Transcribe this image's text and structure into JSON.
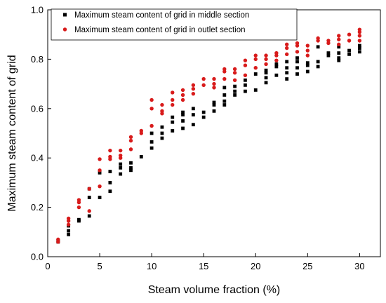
{
  "chart_data": {
    "type": "scatter",
    "xlabel": "Steam volume fraction (%)",
    "ylabel": "Maximum steam content of grid",
    "xlim": [
      0,
      32
    ],
    "ylim": [
      0,
      1.0
    ],
    "x_ticks": [
      0,
      5,
      10,
      15,
      20,
      25,
      30
    ],
    "y_ticks": [
      0.0,
      0.2,
      0.4,
      0.6,
      0.8,
      1.0
    ],
    "x_tick_labels": [
      "0",
      "5",
      "10",
      "15",
      "20",
      "25",
      "30"
    ],
    "y_tick_labels": [
      "0.0",
      "0.2",
      "0.4",
      "0.6",
      "0.8",
      "1.0"
    ],
    "legend_position": "top-left",
    "grid": false,
    "series": [
      {
        "name": "Maximum steam content of grid in middle section",
        "marker": "square",
        "color": "#000000",
        "points": [
          [
            1,
            0.065
          ],
          [
            1,
            0.06
          ],
          [
            2,
            0.09
          ],
          [
            2,
            0.105
          ],
          [
            2,
            0.125
          ],
          [
            3,
            0.15
          ],
          [
            3,
            0.145
          ],
          [
            4,
            0.165
          ],
          [
            4,
            0.24
          ],
          [
            4,
            0.275
          ],
          [
            5,
            0.24
          ],
          [
            5,
            0.34
          ],
          [
            6,
            0.265
          ],
          [
            6,
            0.3
          ],
          [
            6,
            0.345
          ],
          [
            7,
            0.335
          ],
          [
            7,
            0.36
          ],
          [
            7,
            0.375
          ],
          [
            8,
            0.35
          ],
          [
            8,
            0.36
          ],
          [
            8,
            0.38
          ],
          [
            9,
            0.405
          ],
          [
            10,
            0.44
          ],
          [
            10,
            0.465
          ],
          [
            10,
            0.5
          ],
          [
            11,
            0.48
          ],
          [
            11,
            0.5
          ],
          [
            11,
            0.525
          ],
          [
            12,
            0.51
          ],
          [
            12,
            0.545
          ],
          [
            12,
            0.565
          ],
          [
            13,
            0.52
          ],
          [
            13,
            0.55
          ],
          [
            13,
            0.575
          ],
          [
            13,
            0.585
          ],
          [
            14,
            0.535
          ],
          [
            14,
            0.575
          ],
          [
            14,
            0.6
          ],
          [
            15,
            0.565
          ],
          [
            15,
            0.585
          ],
          [
            16,
            0.59
          ],
          [
            16,
            0.615
          ],
          [
            16,
            0.625
          ],
          [
            17,
            0.615
          ],
          [
            17,
            0.63
          ],
          [
            17,
            0.655
          ],
          [
            17,
            0.685
          ],
          [
            18,
            0.655
          ],
          [
            18,
            0.67
          ],
          [
            18,
            0.69
          ],
          [
            19,
            0.67
          ],
          [
            19,
            0.695
          ],
          [
            19,
            0.715
          ],
          [
            20,
            0.675
          ],
          [
            20,
            0.74
          ],
          [
            21,
            0.705
          ],
          [
            21,
            0.725
          ],
          [
            21,
            0.745
          ],
          [
            21,
            0.755
          ],
          [
            22,
            0.735
          ],
          [
            22,
            0.77
          ],
          [
            22,
            0.78
          ],
          [
            23,
            0.72
          ],
          [
            23,
            0.745
          ],
          [
            23,
            0.765
          ],
          [
            23,
            0.79
          ],
          [
            24,
            0.74
          ],
          [
            24,
            0.765
          ],
          [
            24,
            0.79
          ],
          [
            24,
            0.805
          ],
          [
            25,
            0.75
          ],
          [
            25,
            0.775
          ],
          [
            25,
            0.785
          ],
          [
            26,
            0.77
          ],
          [
            26,
            0.79
          ],
          [
            26,
            0.85
          ],
          [
            27,
            0.815
          ],
          [
            27,
            0.825
          ],
          [
            28,
            0.795
          ],
          [
            28,
            0.805
          ],
          [
            28,
            0.825
          ],
          [
            28,
            0.85
          ],
          [
            29,
            0.82
          ],
          [
            29,
            0.835
          ],
          [
            30,
            0.83
          ],
          [
            30,
            0.845
          ],
          [
            30,
            0.855
          ]
        ]
      },
      {
        "name": "Maximum steam content of grid in outlet section",
        "marker": "circle",
        "color": "#d81b1b",
        "points": [
          [
            1,
            0.07
          ],
          [
            1,
            0.06
          ],
          [
            2,
            0.13
          ],
          [
            2,
            0.145
          ],
          [
            2,
            0.155
          ],
          [
            3,
            0.2
          ],
          [
            3,
            0.22
          ],
          [
            3,
            0.23
          ],
          [
            4,
            0.185
          ],
          [
            4,
            0.275
          ],
          [
            5,
            0.285
          ],
          [
            5,
            0.35
          ],
          [
            5,
            0.395
          ],
          [
            6,
            0.395
          ],
          [
            6,
            0.405
          ],
          [
            6,
            0.43
          ],
          [
            7,
            0.4
          ],
          [
            7,
            0.41
          ],
          [
            7,
            0.43
          ],
          [
            8,
            0.435
          ],
          [
            8,
            0.47
          ],
          [
            8,
            0.485
          ],
          [
            9,
            0.5
          ],
          [
            9,
            0.51
          ],
          [
            10,
            0.53
          ],
          [
            10,
            0.6
          ],
          [
            10,
            0.635
          ],
          [
            11,
            0.58
          ],
          [
            11,
            0.59
          ],
          [
            11,
            0.615
          ],
          [
            12,
            0.615
          ],
          [
            12,
            0.635
          ],
          [
            12,
            0.665
          ],
          [
            13,
            0.635
          ],
          [
            13,
            0.655
          ],
          [
            13,
            0.675
          ],
          [
            14,
            0.66
          ],
          [
            14,
            0.68
          ],
          [
            14,
            0.695
          ],
          [
            15,
            0.695
          ],
          [
            15,
            0.72
          ],
          [
            16,
            0.685
          ],
          [
            16,
            0.7
          ],
          [
            16,
            0.72
          ],
          [
            17,
            0.72
          ],
          [
            17,
            0.75
          ],
          [
            17,
            0.76
          ],
          [
            18,
            0.715
          ],
          [
            18,
            0.745
          ],
          [
            18,
            0.76
          ],
          [
            19,
            0.735
          ],
          [
            19,
            0.775
          ],
          [
            19,
            0.795
          ],
          [
            20,
            0.765
          ],
          [
            20,
            0.8
          ],
          [
            20,
            0.815
          ],
          [
            21,
            0.78
          ],
          [
            21,
            0.8
          ],
          [
            21,
            0.815
          ],
          [
            22,
            0.795
          ],
          [
            22,
            0.815
          ],
          [
            22,
            0.825
          ],
          [
            23,
            0.82
          ],
          [
            23,
            0.845
          ],
          [
            23,
            0.86
          ],
          [
            24,
            0.83
          ],
          [
            24,
            0.855
          ],
          [
            24,
            0.865
          ],
          [
            25,
            0.815
          ],
          [
            25,
            0.835
          ],
          [
            25,
            0.855
          ],
          [
            26,
            0.875
          ],
          [
            26,
            0.885
          ],
          [
            27,
            0.865
          ],
          [
            27,
            0.875
          ],
          [
            28,
            0.86
          ],
          [
            28,
            0.88
          ],
          [
            28,
            0.895
          ],
          [
            29,
            0.875
          ],
          [
            29,
            0.9
          ],
          [
            30,
            0.875
          ],
          [
            30,
            0.895
          ],
          [
            30,
            0.91
          ],
          [
            30,
            0.92
          ]
        ]
      }
    ]
  }
}
